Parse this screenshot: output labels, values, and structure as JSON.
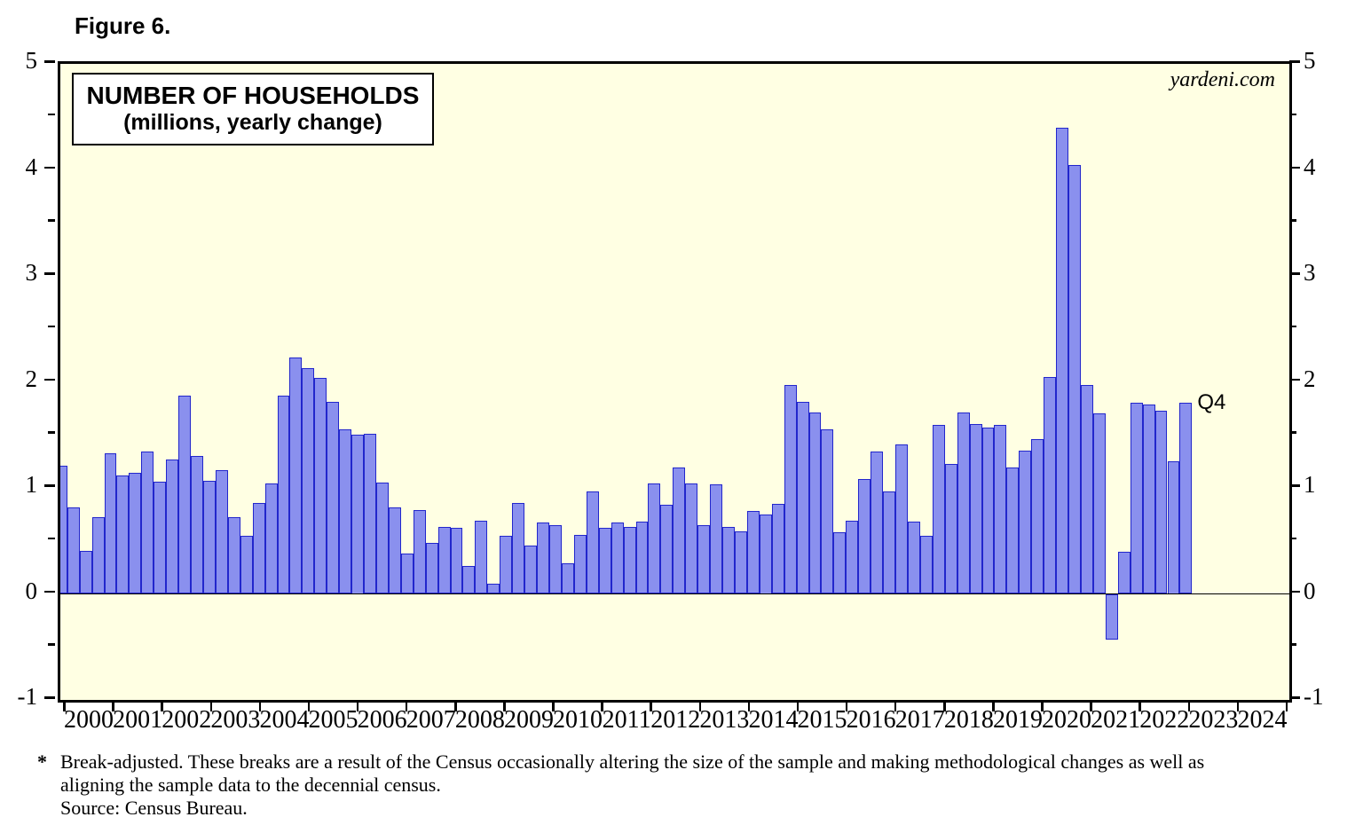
{
  "figure_label": "Figure 6.",
  "watermark": "yardeni.com",
  "chart_data": {
    "type": "bar",
    "title": "NUMBER OF HOUSEHOLDS",
    "subtitle": "(millions, yearly change)",
    "unit": "millions, yearly change",
    "ylim": [
      -1,
      5
    ],
    "y_major_ticks": [
      5,
      4,
      3,
      2,
      1,
      0,
      -1
    ],
    "y_minor_step": 0.5,
    "grid": "off",
    "legend": "none",
    "x_axis_year_labels": [
      "2000",
      "2001",
      "2002",
      "2003",
      "2004",
      "2005",
      "2006",
      "2007",
      "2008",
      "2009",
      "2010",
      "2011",
      "2012",
      "2013",
      "2014",
      "2015",
      "2016",
      "2017",
      "2018",
      "2019",
      "2020",
      "2021",
      "2022",
      "2023",
      "2024"
    ],
    "frequency": "quarterly",
    "last_point_label": "Q4",
    "series": [
      {
        "name": "Number of households, yearly change (millions)",
        "values_by_year": [
          {
            "year": 2000,
            "q": [
              1.21,
              0.82,
              0.41,
              0.72
            ]
          },
          {
            "year": 2001,
            "q": [
              1.33,
              1.12,
              1.14,
              1.34
            ]
          },
          {
            "year": 2002,
            "q": [
              1.06,
              1.27,
              1.87,
              1.3
            ]
          },
          {
            "year": 2003,
            "q": [
              1.07,
              1.17,
              0.72,
              0.55
            ]
          },
          {
            "year": 2004,
            "q": [
              0.86,
              1.04,
              1.87,
              2.23
            ]
          },
          {
            "year": 2005,
            "q": [
              2.13,
              2.04,
              1.81,
              1.55
            ]
          },
          {
            "year": 2006,
            "q": [
              1.5,
              1.51,
              1.05,
              0.82
            ]
          },
          {
            "year": 2007,
            "q": [
              0.38,
              0.79,
              0.48,
              0.63
            ]
          },
          {
            "year": 2008,
            "q": [
              0.62,
              0.26,
              0.69,
              0.1
            ]
          },
          {
            "year": 2009,
            "q": [
              0.55,
              0.86,
              0.46,
              0.67
            ]
          },
          {
            "year": 2010,
            "q": [
              0.65,
              0.29,
              0.56,
              0.97
            ]
          },
          {
            "year": 2011,
            "q": [
              0.62,
              0.67,
              0.63,
              0.68
            ]
          },
          {
            "year": 2012,
            "q": [
              1.04,
              0.84,
              1.19,
              1.04
            ]
          },
          {
            "year": 2013,
            "q": [
              0.65,
              1.03,
              0.63,
              0.59
            ]
          },
          {
            "year": 2014,
            "q": [
              0.78,
              0.75,
              0.85,
              1.97
            ]
          },
          {
            "year": 2015,
            "q": [
              1.81,
              1.71,
              1.55,
              0.58
            ]
          },
          {
            "year": 2016,
            "q": [
              0.69,
              1.08,
              1.34,
              0.97
            ]
          },
          {
            "year": 2017,
            "q": [
              1.41,
              0.68,
              0.55,
              1.59
            ]
          },
          {
            "year": 2018,
            "q": [
              1.23,
              1.71,
              1.6,
              1.57
            ]
          },
          {
            "year": 2019,
            "q": [
              1.59,
              1.19,
              1.35,
              1.46
            ]
          },
          {
            "year": 2020,
            "q": [
              2.05,
              4.4,
              4.05,
              1.97
            ]
          },
          {
            "year": 2021,
            "q": [
              1.7,
              -0.43,
              0.4,
              1.8
            ]
          },
          {
            "year": 2022,
            "q": [
              1.79,
              1.73,
              1.25,
              1.8
            ]
          }
        ]
      }
    ]
  },
  "footnote": {
    "star": "*",
    "lines": [
      "Break-adjusted. These breaks are a result of the Census occasionally altering the size of the sample and making methodological changes as well as",
      "aligning the sample data to the decennial census.",
      "Source: Census Bureau."
    ]
  },
  "colors": {
    "plot_background": "#FFFFE3",
    "bar_fill": "#8A90EE",
    "bar_border": "#2226CC",
    "frame": "#000000",
    "text": "#000000"
  }
}
